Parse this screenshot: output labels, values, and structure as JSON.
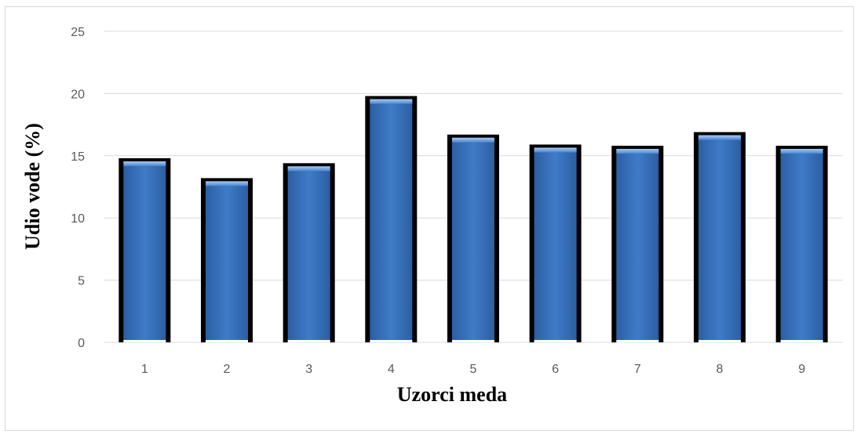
{
  "chart_data": {
    "type": "bar",
    "title": "",
    "xlabel": "Uzorci meda",
    "ylabel": "Udio vode (%)",
    "categories": [
      "1",
      "2",
      "3",
      "4",
      "5",
      "6",
      "7",
      "8",
      "9"
    ],
    "values": [
      14.8,
      13.2,
      14.4,
      19.8,
      16.7,
      15.9,
      15.8,
      16.9,
      15.8
    ],
    "ylim": [
      0,
      25
    ],
    "yticks": [
      "0",
      "5",
      "10",
      "15",
      "20",
      "25"
    ],
    "grid": true,
    "legend": "none",
    "colors": {
      "bar_fill": "#3a74c0",
      "bar_highlight": "#8fb7ea",
      "bar_border": "#000000",
      "gridline": "#d9d9d9",
      "tick_text": "#595959"
    }
  }
}
